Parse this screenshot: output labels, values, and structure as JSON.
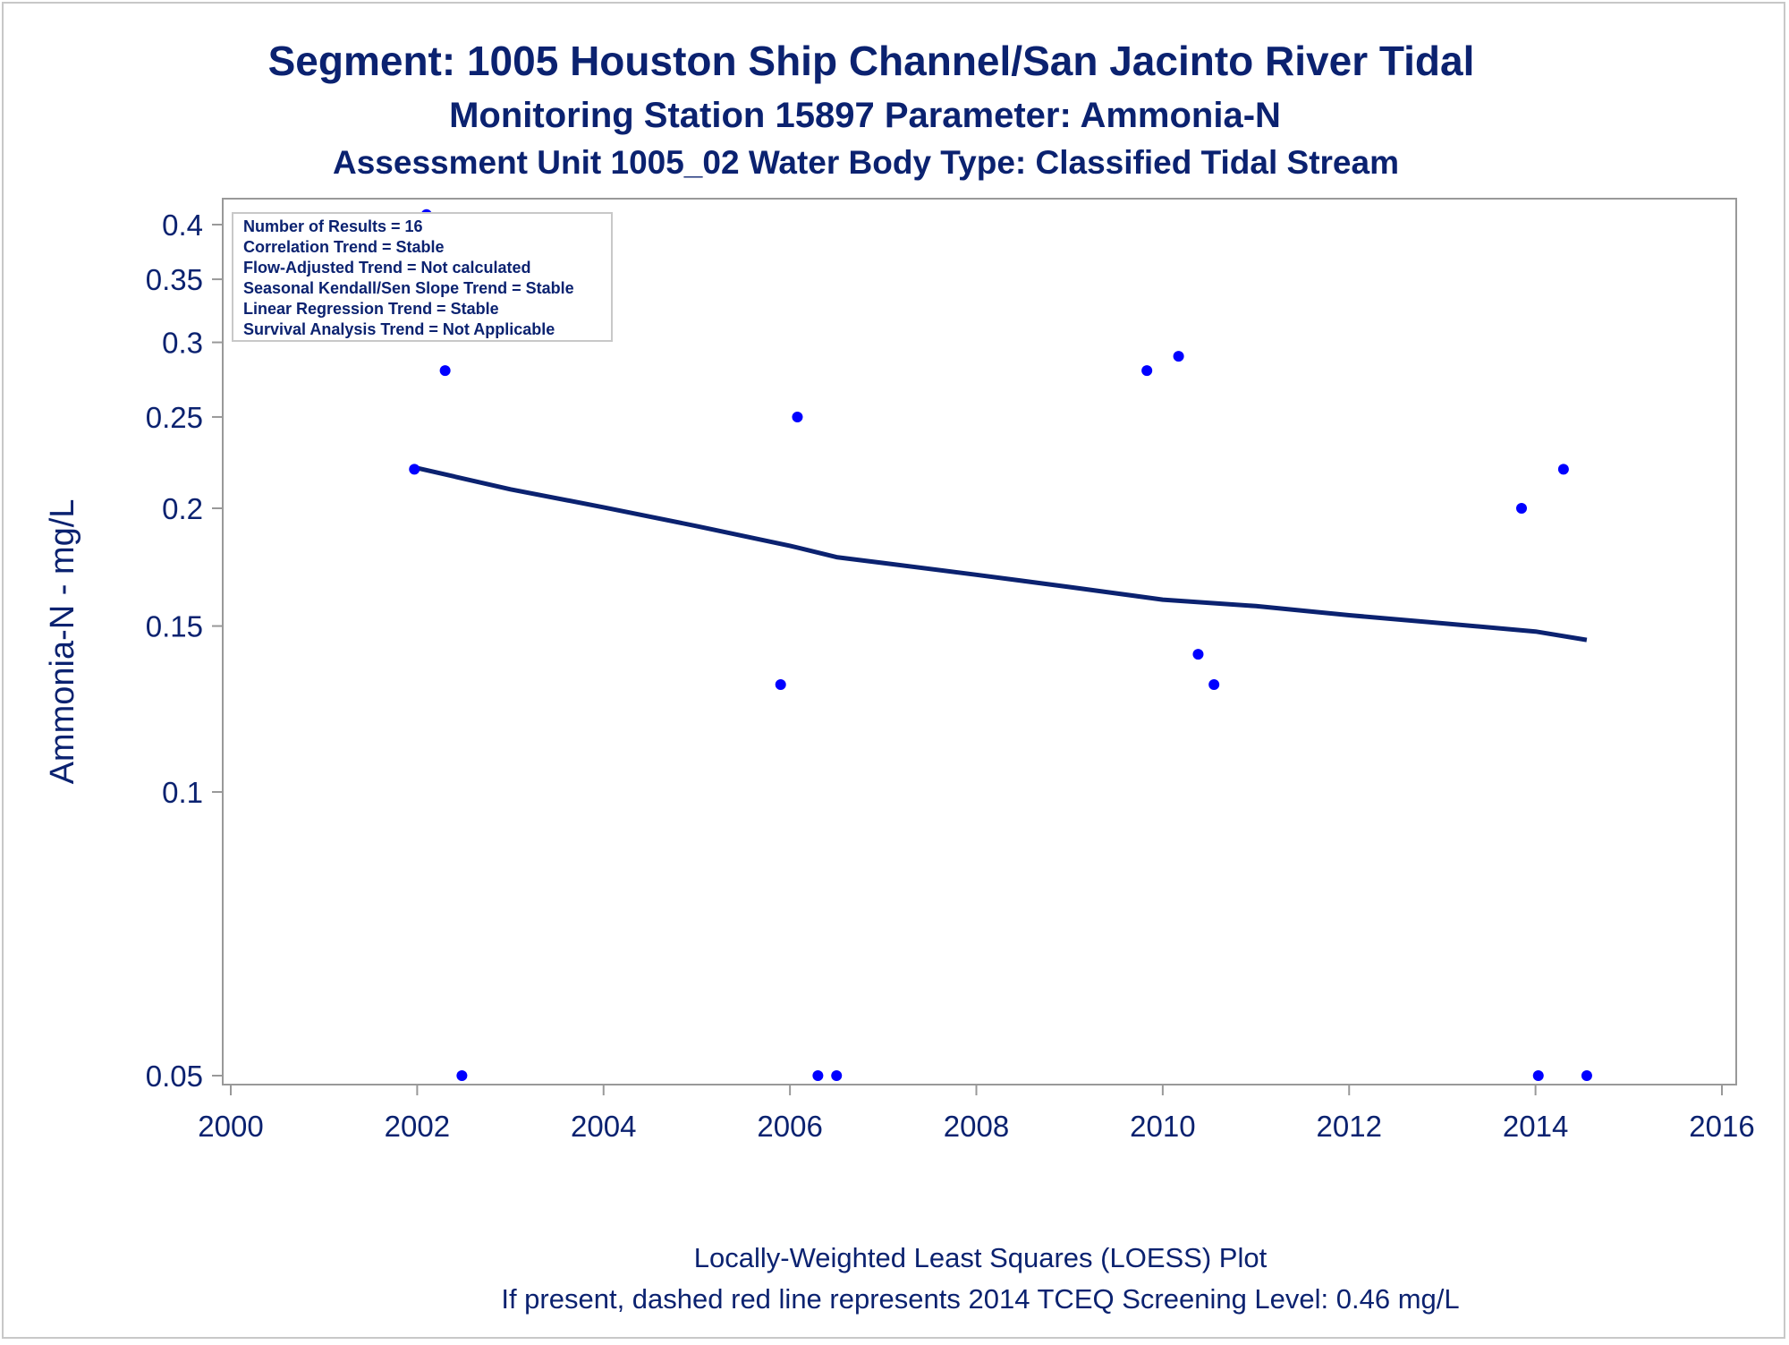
{
  "titles": {
    "line1": "Segment: 1005  Houston Ship Channel/San Jacinto River Tidal",
    "line2": "Monitoring Station 15897 Parameter: Ammonia-N",
    "line3": "Assessment Unit 1005_02   Water Body Type: Classified Tidal Stream"
  },
  "footnotes": {
    "line1": "Locally-Weighted Least Squares (LOESS) Plot",
    "line2": "If present, dashed red line represents 2014 TCEQ Screening Level: 0.46 mg/L"
  },
  "stats_box": [
    "Number of Results = 16",
    "Correlation Trend = Stable",
    "Flow-Adjusted Trend = Not calculated",
    "Seasonal Kendall/Sen Slope Trend = Stable",
    "Linear Regression Trend = Stable",
    "Survival Analysis Trend = Not Applicable"
  ],
  "colors": {
    "text": "#0b2270",
    "points": "#0000ff",
    "loess_line": "#0b2270",
    "axis": "#999999"
  },
  "chart_data": {
    "type": "scatter",
    "ylabel": "Ammonia-N - mg/L",
    "xlabel": "",
    "y_scale": "log",
    "xlim": [
      2000,
      2016
    ],
    "ylim": [
      0.05,
      0.4
    ],
    "x_ticks": [
      "2000",
      "2002",
      "2004",
      "2006",
      "2008",
      "2010",
      "2012",
      "2014",
      "2016"
    ],
    "x_tick_values": [
      2000,
      2002,
      2004,
      2006,
      2008,
      2010,
      2012,
      2014,
      2016
    ],
    "y_ticks": [
      "0.4",
      "0.35",
      "0.3",
      "0.25",
      "0.2",
      "0.15",
      "0.1",
      "0.05"
    ],
    "y_tick_values": [
      0.4,
      0.35,
      0.3,
      0.25,
      0.2,
      0.15,
      0.1,
      0.05
    ],
    "legend": "top-left",
    "grid": false,
    "points": [
      {
        "x": 2001.97,
        "y": 0.22
      },
      {
        "x": 2002.1,
        "y": 0.41
      },
      {
        "x": 2002.3,
        "y": 0.28
      },
      {
        "x": 2002.48,
        "y": 0.05
      },
      {
        "x": 2005.9,
        "y": 0.13
      },
      {
        "x": 2006.08,
        "y": 0.25
      },
      {
        "x": 2006.3,
        "y": 0.05
      },
      {
        "x": 2006.5,
        "y": 0.05
      },
      {
        "x": 2009.83,
        "y": 0.28
      },
      {
        "x": 2010.17,
        "y": 0.29
      },
      {
        "x": 2010.38,
        "y": 0.14
      },
      {
        "x": 2010.55,
        "y": 0.13
      },
      {
        "x": 2013.85,
        "y": 0.2
      },
      {
        "x": 2014.03,
        "y": 0.05
      },
      {
        "x": 2014.3,
        "y": 0.22
      },
      {
        "x": 2014.55,
        "y": 0.05
      }
    ],
    "loess": [
      {
        "x": 2001.97,
        "y": 0.221
      },
      {
        "x": 2003.0,
        "y": 0.2095
      },
      {
        "x": 2004.0,
        "y": 0.2005
      },
      {
        "x": 2005.0,
        "y": 0.1915
      },
      {
        "x": 2006.0,
        "y": 0.1825
      },
      {
        "x": 2006.5,
        "y": 0.1775
      },
      {
        "x": 2007.0,
        "y": 0.175
      },
      {
        "x": 2008.0,
        "y": 0.17
      },
      {
        "x": 2009.0,
        "y": 0.165
      },
      {
        "x": 2010.0,
        "y": 0.16
      },
      {
        "x": 2011.0,
        "y": 0.1575
      },
      {
        "x": 2012.0,
        "y": 0.154
      },
      {
        "x": 2013.0,
        "y": 0.151
      },
      {
        "x": 2014.0,
        "y": 0.148
      },
      {
        "x": 2014.55,
        "y": 0.145
      }
    ]
  }
}
